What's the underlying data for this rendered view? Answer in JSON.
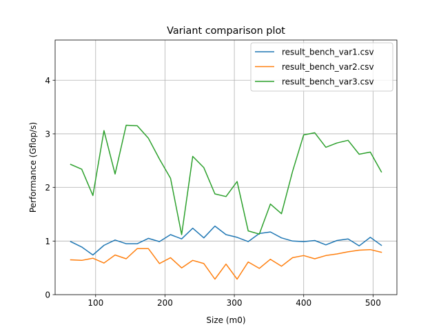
{
  "chart_data": {
    "type": "line",
    "title": "Variant comparison plot",
    "xlabel": "Size (m0)",
    "ylabel": "Performance (Gflop/s)",
    "xlim": [
      41.6,
      534.4
    ],
    "ylim": [
      0,
      4.75
    ],
    "xticks": [
      100,
      200,
      300,
      400,
      500
    ],
    "yticks": [
      0,
      1,
      2,
      3,
      4
    ],
    "grid": true,
    "legend_position": "top-right",
    "x": [
      64,
      80,
      96,
      112,
      128,
      144,
      160,
      176,
      192,
      208,
      224,
      240,
      256,
      272,
      288,
      304,
      320,
      336,
      352,
      368,
      384,
      400,
      416,
      432,
      448,
      464,
      480,
      496,
      512
    ],
    "series": [
      {
        "name": "result_bench_var1.csv",
        "color": "#1f77b4",
        "values": [
          0.99,
          0.89,
          0.74,
          0.92,
          1.02,
          0.95,
          0.95,
          1.05,
          0.99,
          1.12,
          1.04,
          1.24,
          1.06,
          1.28,
          1.12,
          1.07,
          0.99,
          1.14,
          1.17,
          1.06,
          1.0,
          0.99,
          1.01,
          0.93,
          1.01,
          1.04,
          0.91,
          1.07,
          0.92
        ]
      },
      {
        "name": "result_bench_var2.csv",
        "color": "#ff7f0e",
        "values": [
          0.65,
          0.64,
          0.68,
          0.59,
          0.74,
          0.67,
          0.86,
          0.86,
          0.58,
          0.69,
          0.5,
          0.64,
          0.58,
          0.29,
          0.57,
          0.29,
          0.61,
          0.49,
          0.66,
          0.53,
          0.69,
          0.73,
          0.67,
          0.73,
          0.76,
          0.8,
          0.83,
          0.84,
          0.79
        ]
      },
      {
        "name": "result_bench_var3.csv",
        "color": "#2ca02c",
        "values": [
          2.43,
          2.34,
          1.85,
          3.06,
          2.25,
          3.16,
          3.15,
          2.92,
          2.53,
          2.17,
          1.12,
          2.58,
          2.37,
          1.88,
          1.83,
          2.11,
          1.19,
          1.13,
          1.69,
          1.51,
          2.3,
          2.98,
          3.02,
          2.75,
          2.83,
          2.88,
          2.62,
          2.66,
          2.29
        ]
      }
    ]
  }
}
